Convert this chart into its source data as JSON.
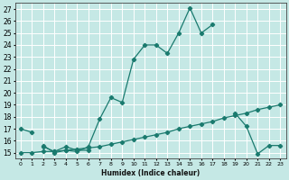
{
  "title": "",
  "xlabel": "Humidex (Indice chaleur)",
  "ylabel": "",
  "bg_color": "#c5e8e5",
  "line_color": "#1a7a6e",
  "grid_color": "#ffffff",
  "xlim": [
    -0.5,
    23.5
  ],
  "ylim": [
    14.5,
    27.5
  ],
  "xticks": [
    0,
    1,
    2,
    3,
    4,
    5,
    6,
    7,
    8,
    9,
    10,
    11,
    12,
    13,
    14,
    15,
    16,
    17,
    18,
    19,
    20,
    21,
    22,
    23
  ],
  "yticks": [
    15,
    16,
    17,
    18,
    19,
    20,
    21,
    22,
    23,
    24,
    25,
    26,
    27
  ],
  "series": [
    {
      "x": [
        0,
        1
      ],
      "y": [
        17.0,
        16.7
      ]
    },
    {
      "x": [
        2,
        3,
        4,
        5,
        6,
        7,
        8,
        9,
        10,
        11,
        12,
        13,
        14,
        15,
        16,
        17
      ],
      "y": [
        15.6,
        15.0,
        15.2,
        15.1,
        15.5,
        17.8,
        19.6,
        19.2,
        22.8,
        24.0,
        24.0,
        23.3,
        25.0,
        27.1,
        25.0,
        25.7
      ]
    },
    {
      "segments": [
        {
          "x": [
            2,
            3,
            4,
            5,
            6
          ],
          "y": [
            15.5,
            15.1,
            15.5,
            15.2,
            15.2
          ]
        },
        {
          "x": [
            19,
            20,
            21,
            22,
            23
          ],
          "y": [
            18.3,
            17.2,
            14.9,
            15.6,
            15.6
          ]
        }
      ]
    },
    {
      "x": [
        0,
        1,
        2,
        3,
        4,
        5,
        6,
        7,
        8,
        9,
        10,
        11,
        12,
        13,
        14,
        15,
        16,
        17,
        18,
        19,
        20,
        21,
        22,
        23
      ],
      "y": [
        15.0,
        15.0,
        15.1,
        15.1,
        15.2,
        15.3,
        15.4,
        15.5,
        15.7,
        15.9,
        16.1,
        16.3,
        16.5,
        16.7,
        17.0,
        17.2,
        17.4,
        17.6,
        17.9,
        18.1,
        18.3,
        18.6,
        18.8,
        19.0
      ]
    }
  ]
}
